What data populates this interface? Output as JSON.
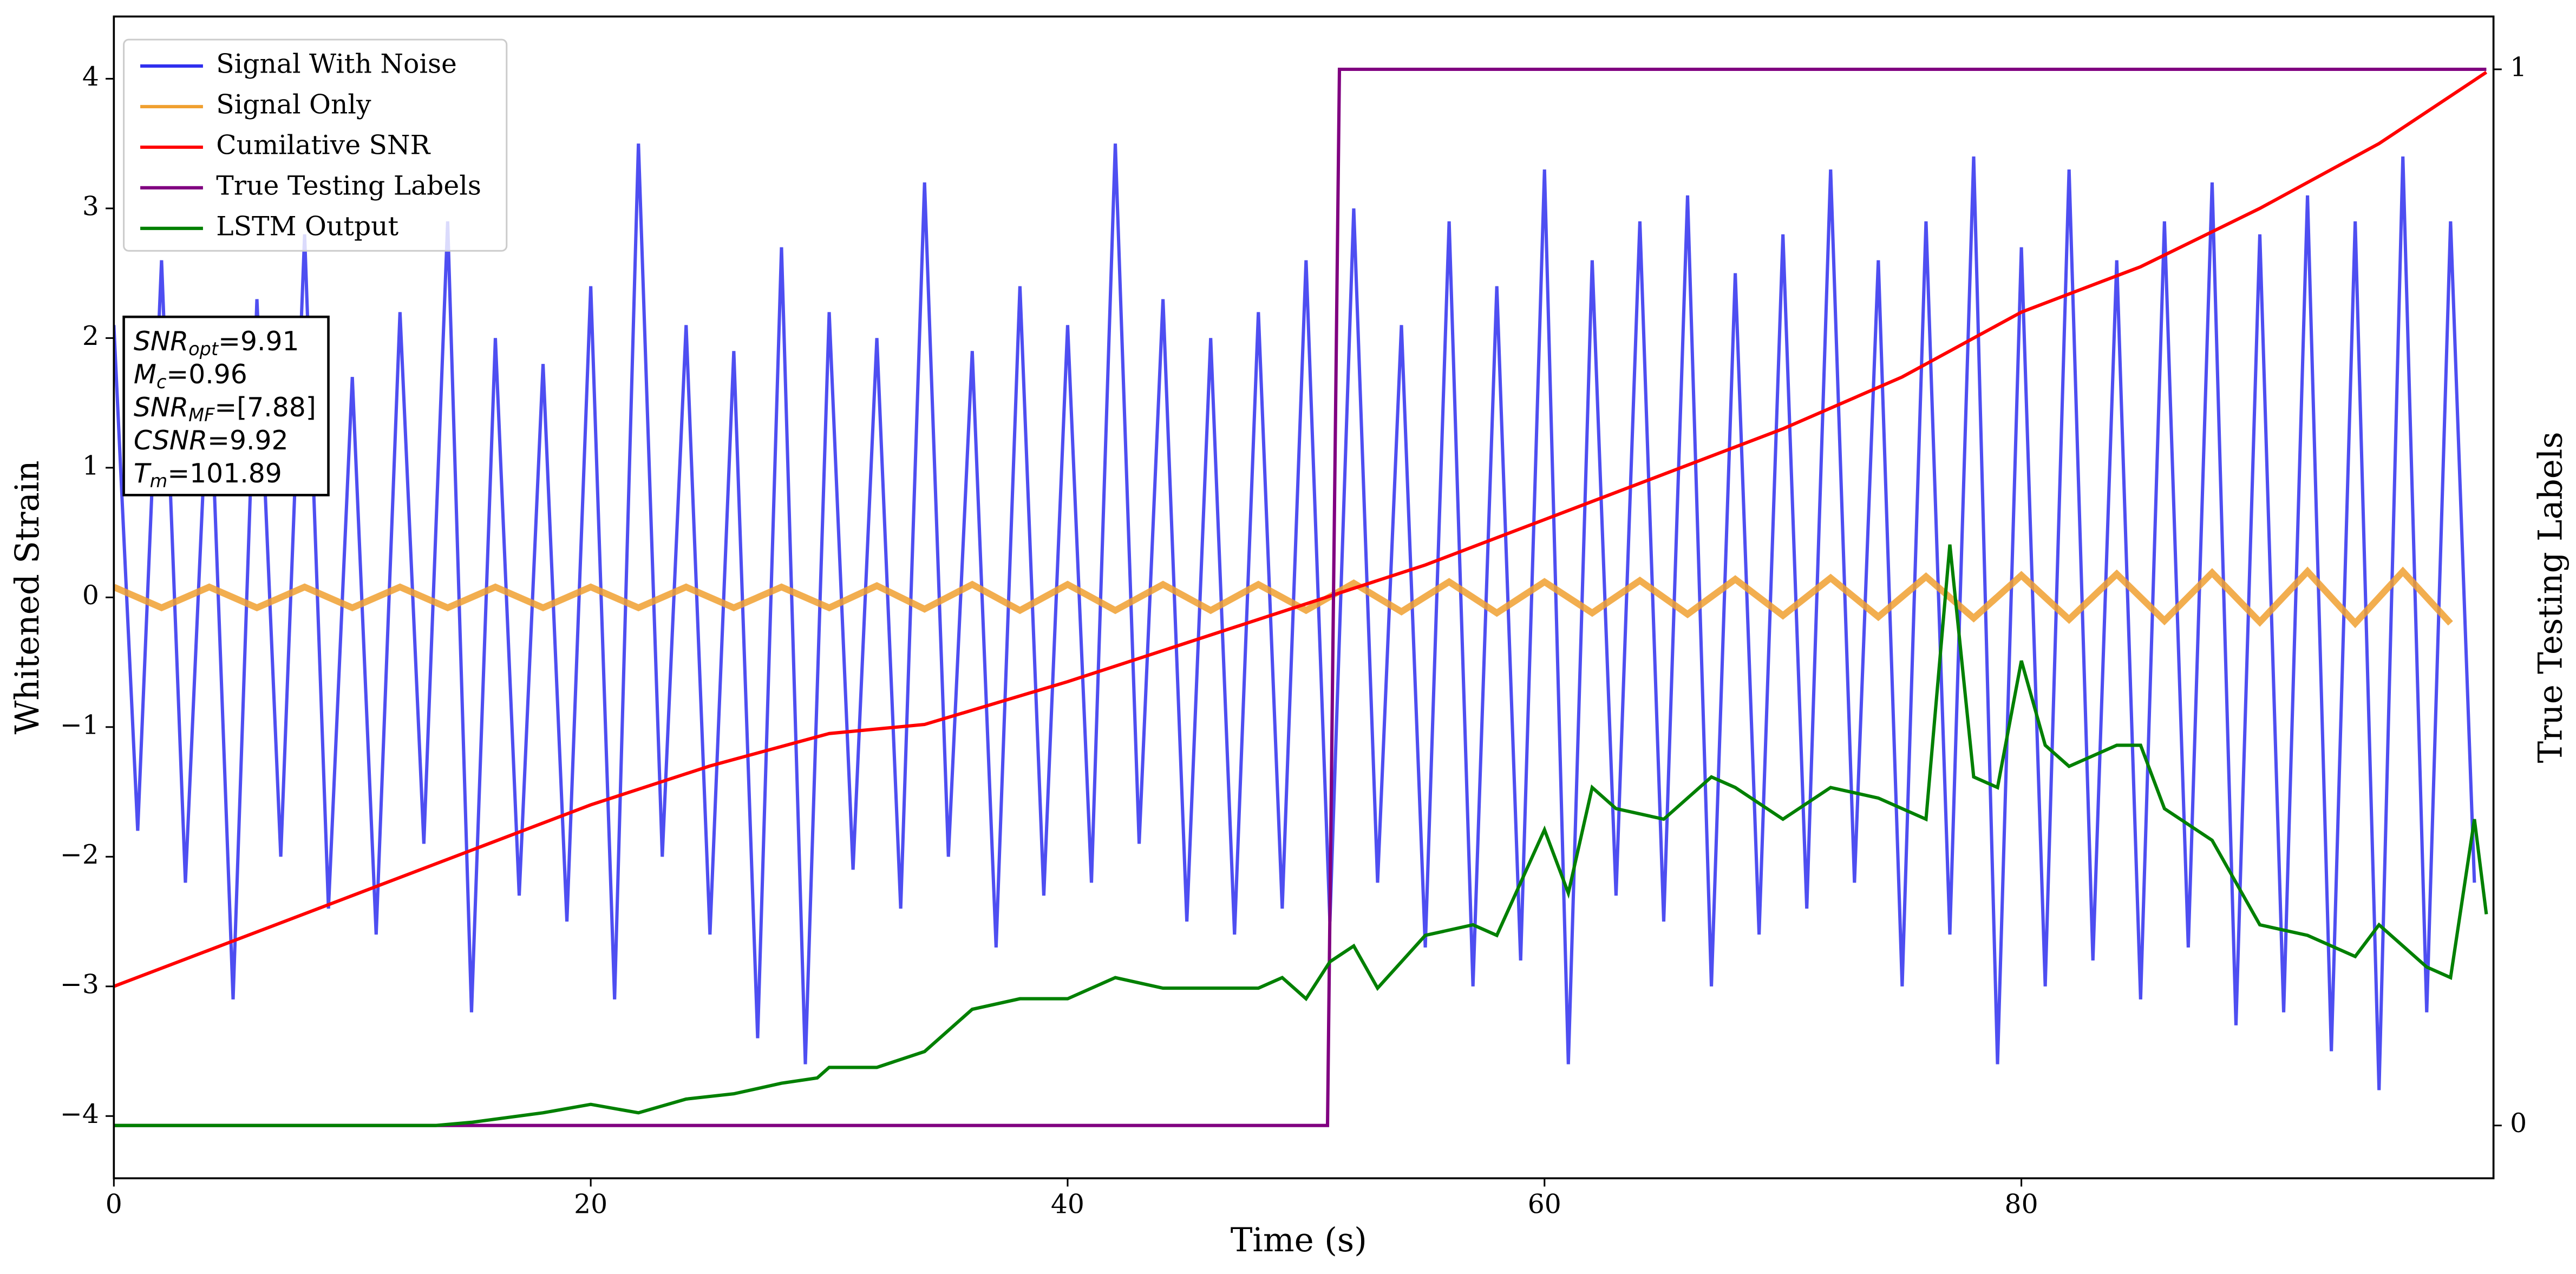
{
  "chart_data": {
    "type": "line",
    "xlabel": "Time (s)",
    "ylabel": "Whitened Strain",
    "y2label": "True Testing Labels",
    "xlim": [
      0,
      99.8
    ],
    "xticks": [
      0,
      20,
      40,
      60,
      80
    ],
    "ylim": [
      -4.48,
      4.48
    ],
    "yticks": [
      {
        "value": -4,
        "label": "−4"
      },
      {
        "value": -3,
        "label": "−3"
      },
      {
        "value": -2,
        "label": "−2"
      },
      {
        "value": -1,
        "label": "−1"
      },
      0,
      1,
      2,
      3,
      4
    ],
    "y2lim": [
      -0.05,
      1.05
    ],
    "y2ticks": [
      0,
      1
    ],
    "legend": "upper left",
    "annotation": [
      {
        "base": "SNR",
        "sub": "opt",
        "text": "=9.91"
      },
      {
        "base": "M",
        "sub": "c",
        "text": "=0.96"
      },
      {
        "base": "SNR",
        "sub": "MF",
        "text": "=[7.88]"
      },
      {
        "base": "CSNR",
        "text": "=9.92"
      },
      {
        "base": "T",
        "sub": "m",
        "text": "=101.89"
      }
    ],
    "series": [
      {
        "name": "Signal With Noise",
        "color": "#2f2fef",
        "axis": "y",
        "x": [
          0,
          1,
          2,
          3,
          4,
          5,
          6,
          7,
          8,
          9,
          10,
          11,
          12,
          13,
          14,
          15,
          16,
          17,
          18,
          19,
          20,
          21,
          22,
          23,
          24,
          25,
          26,
          27,
          28,
          29,
          30,
          31,
          32,
          33,
          34,
          35,
          36,
          37,
          38,
          39,
          40,
          41,
          42,
          43,
          44,
          45,
          46,
          47,
          48,
          49,
          50,
          51,
          52,
          53,
          54,
          55,
          56,
          57,
          58,
          59,
          60,
          61,
          62,
          63,
          64,
          65,
          66,
          67,
          68,
          69,
          70,
          71,
          72,
          73,
          74,
          75,
          76,
          77,
          78,
          79,
          80,
          81,
          82,
          83,
          84,
          85,
          86,
          87,
          88,
          89,
          90,
          91,
          92,
          93,
          94,
          95,
          96,
          97,
          98,
          99
        ],
        "values": [
          2.1,
          -1.8,
          2.6,
          -2.2,
          1.9,
          -3.1,
          2.3,
          -2.0,
          2.8,
          -2.4,
          1.7,
          -2.6,
          2.2,
          -1.9,
          2.9,
          -3.2,
          2.0,
          -2.3,
          1.8,
          -2.5,
          2.4,
          -3.1,
          3.5,
          -2.0,
          2.1,
          -2.6,
          1.9,
          -3.4,
          2.7,
          -3.6,
          2.2,
          -2.1,
          2.0,
          -2.4,
          3.2,
          -2.0,
          1.9,
          -2.7,
          2.4,
          -2.3,
          2.1,
          -2.2,
          3.5,
          -1.9,
          2.3,
          -2.5,
          2.0,
          -2.6,
          2.2,
          -2.4,
          2.6,
          -2.5,
          3.0,
          -2.2,
          2.1,
          -2.7,
          2.9,
          -3.0,
          2.4,
          -2.8,
          3.3,
          -3.6,
          2.6,
          -2.3,
          2.9,
          -2.5,
          3.1,
          -3.0,
          2.5,
          -2.6,
          2.8,
          -2.4,
          3.3,
          -2.2,
          2.6,
          -3.0,
          2.9,
          -2.6,
          3.4,
          -3.6,
          2.7,
          -3.0,
          3.3,
          -2.8,
          2.6,
          -3.1,
          2.9,
          -2.7,
          3.2,
          -3.3,
          2.8,
          -3.2,
          3.1,
          -3.5,
          2.9,
          -3.8,
          3.4,
          -3.2,
          2.9,
          -2.2
        ]
      },
      {
        "name": "Signal Only",
        "color": "#f0a030",
        "axis": "y",
        "x": [
          0,
          2,
          4,
          6,
          8,
          10,
          12,
          14,
          16,
          18,
          20,
          22,
          24,
          26,
          28,
          30,
          32,
          34,
          36,
          38,
          40,
          42,
          44,
          46,
          48,
          50,
          52,
          54,
          56,
          58,
          60,
          62,
          64,
          66,
          68,
          70,
          72,
          74,
          76,
          78,
          80,
          82,
          84,
          86,
          88,
          90,
          92,
          94,
          96,
          98
        ],
        "values": [
          0.08,
          -0.08,
          0.08,
          -0.08,
          0.08,
          -0.08,
          0.08,
          -0.08,
          0.08,
          -0.08,
          0.08,
          -0.08,
          0.08,
          -0.08,
          0.08,
          -0.08,
          0.09,
          -0.09,
          0.1,
          -0.1,
          0.1,
          -0.1,
          0.1,
          -0.1,
          0.1,
          -0.1,
          0.11,
          -0.11,
          0.12,
          -0.12,
          0.12,
          -0.12,
          0.13,
          -0.13,
          0.14,
          -0.14,
          0.15,
          -0.15,
          0.16,
          -0.16,
          0.17,
          -0.17,
          0.18,
          -0.18,
          0.19,
          -0.19,
          0.2,
          -0.2,
          0.2,
          -0.2
        ]
      },
      {
        "name": "Cumilative SNR",
        "color": "#ff0000",
        "axis": "y",
        "x": [
          0,
          5,
          10,
          15,
          20,
          25,
          30,
          34,
          40,
          45,
          50,
          55,
          60,
          65,
          70,
          75,
          80,
          85,
          90,
          95,
          99.5
        ],
        "values": [
          -3.0,
          -2.65,
          -2.3,
          -1.95,
          -1.6,
          -1.3,
          -1.05,
          -0.98,
          -0.65,
          -0.35,
          -0.05,
          0.25,
          0.6,
          0.95,
          1.3,
          1.7,
          2.2,
          2.55,
          3.0,
          3.5,
          4.05
        ]
      },
      {
        "name": "True Testing Labels",
        "color": "#800080",
        "axis": "y2",
        "x": [
          0,
          50.9,
          51.4,
          99.5
        ],
        "values": [
          0,
          0,
          1,
          1
        ]
      },
      {
        "name": "LSTM Output",
        "color": "#008000",
        "axis": "y2",
        "x": [
          0,
          13.5,
          15,
          18,
          20,
          22,
          24,
          26,
          28,
          29.5,
          30,
          32,
          34,
          36,
          38,
          40,
          42,
          44,
          46,
          48,
          49,
          50,
          51,
          52,
          53,
          55,
          57,
          58,
          60,
          61,
          62,
          63,
          65,
          67,
          68,
          70,
          72,
          74,
          76,
          77,
          78,
          79,
          80,
          81,
          82,
          84,
          85,
          86,
          88,
          90,
          92,
          94,
          95,
          96,
          97,
          98,
          99,
          99.5
        ],
        "values": [
          0,
          0,
          0.003,
          0.012,
          0.02,
          0.012,
          0.025,
          0.03,
          0.04,
          0.045,
          0.055,
          0.055,
          0.07,
          0.11,
          0.12,
          0.12,
          0.14,
          0.13,
          0.13,
          0.13,
          0.14,
          0.12,
          0.155,
          0.17,
          0.13,
          0.18,
          0.19,
          0.18,
          0.28,
          0.22,
          0.32,
          0.3,
          0.29,
          0.33,
          0.32,
          0.29,
          0.32,
          0.31,
          0.29,
          0.55,
          0.33,
          0.32,
          0.44,
          0.36,
          0.34,
          0.36,
          0.36,
          0.3,
          0.27,
          0.19,
          0.18,
          0.16,
          0.19,
          0.17,
          0.15,
          0.14,
          0.29,
          0.2
        ]
      }
    ]
  }
}
